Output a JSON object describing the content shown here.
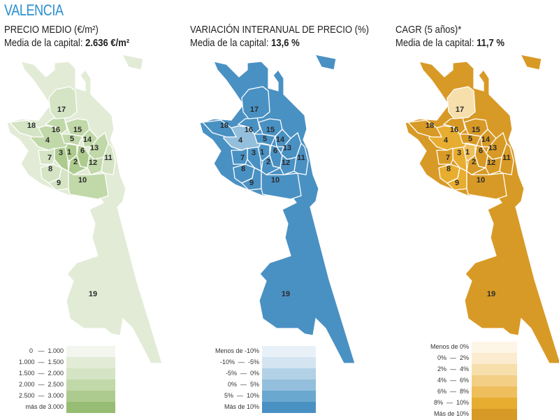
{
  "title": "VALENCIA",
  "panels": [
    {
      "heading": "PRECIO MEDIO (€/m²)",
      "subheading_prefix": "Media de la capital: ",
      "subheading_value": "2.636 €/m²",
      "palette": [
        "#f3f6ee",
        "#e2ebd6",
        "#d4e4c4",
        "#c1d8a9",
        "#aecb8f",
        "#96bd73"
      ],
      "legend": [
        "0   —  1.000",
        "1.000  —  1.500",
        "1.500  —  2.000",
        "2.000  —  2.500",
        "2.500  —  3.000",
        "más de 3.000"
      ],
      "district_class": {
        "1": 4,
        "2": 4,
        "3": 4,
        "4": 3,
        "5": 3,
        "6": 4,
        "7": 2,
        "8": 2,
        "9": 2,
        "10": 3,
        "11": 2,
        "12": 3,
        "13": 3,
        "14": 3,
        "15": 3,
        "16": 3,
        "17": 2,
        "18": 2,
        "19": 1
      }
    },
    {
      "heading": "VARIACIÓN INTERANUAL DE PRECIO (%)",
      "subheading_prefix": "Media de la capital: ",
      "subheading_value": "13,6 %",
      "palette": [
        "#e9f1f8",
        "#d4e5f1",
        "#b3d1e6",
        "#94bfdc",
        "#6ba8cf",
        "#4a91c3"
      ],
      "legend": [
        "Menos de -10%",
        "-10%  —  -5%",
        "-5%  —  0%",
        "0%  —  5%",
        "5%  —  10%",
        "Más de 10%"
      ],
      "district_class": {
        "1": 5,
        "2": 5,
        "3": 5,
        "4": 3,
        "5": 5,
        "6": 5,
        "7": 5,
        "8": 5,
        "9": 5,
        "10": 5,
        "11": 5,
        "12": 5,
        "13": 5,
        "14": 5,
        "15": 5,
        "16": 5,
        "17": 5,
        "18": 5,
        "19": 5
      }
    },
    {
      "heading": "CAGR (5 años)*",
      "subheading_prefix": "Media de la capital: ",
      "subheading_value": "11,7 %",
      "palette": [
        "#fdf5e6",
        "#fbecd0",
        "#f7dfac",
        "#f2cf84",
        "#eebf5c",
        "#e7ad31",
        "#d89a26"
      ],
      "legend": [
        "Menos de 0%",
        "0%  —  2%",
        "2%  —  4%",
        "4%  —  6%",
        "6%  —  8%",
        "8%  —  10%",
        "Más de 10%"
      ],
      "district_class": {
        "1": 4,
        "2": 6,
        "3": 5,
        "4": 5,
        "5": 6,
        "6": 6,
        "7": 6,
        "8": 5,
        "9": 5,
        "10": 6,
        "11": 6,
        "12": 6,
        "13": 6,
        "14": 6,
        "15": 6,
        "16": 6,
        "17": 2,
        "18": 6,
        "19": 6
      }
    }
  ],
  "districts": [
    "1",
    "2",
    "3",
    "4",
    "5",
    "6",
    "7",
    "8",
    "9",
    "10",
    "11",
    "12",
    "13",
    "14",
    "15",
    "16",
    "17",
    "18",
    "19"
  ]
}
